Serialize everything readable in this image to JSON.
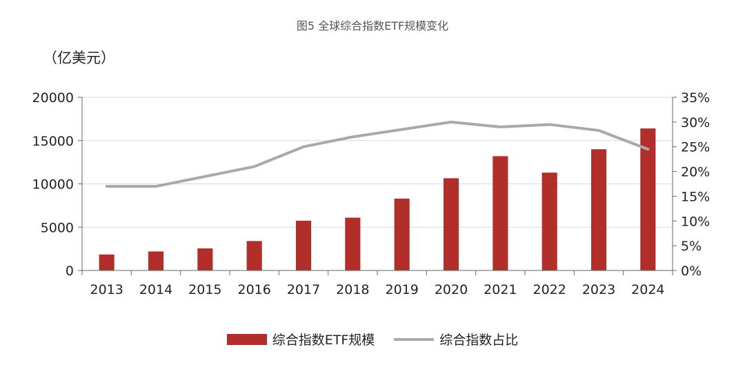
{
  "title": "图5 全球综合指数ETF规模变化",
  "unit_left": "（亿美元）",
  "colors": {
    "bar": "#B22E2B",
    "line": "#A9A9A9",
    "grid": "#D9D9D9",
    "axis": "#666666"
  },
  "chart_data": {
    "type": "bar+line",
    "categories": [
      "2013",
      "2014",
      "2015",
      "2016",
      "2017",
      "2018",
      "2019",
      "2020",
      "2021",
      "2022",
      "2023",
      "2024"
    ],
    "series": [
      {
        "name": "综合指数ETF规模",
        "type": "bar",
        "axis": "left",
        "values": [
          1850,
          2200,
          2550,
          3400,
          5750,
          6100,
          8300,
          10650,
          13200,
          11300,
          14000,
          16400
        ]
      },
      {
        "name": "综合指数占比",
        "type": "line",
        "axis": "right",
        "values": [
          17.0,
          17.0,
          19.0,
          21.0,
          25.0,
          27.0,
          28.5,
          30.0,
          29.0,
          29.5,
          28.3,
          24.5
        ]
      }
    ],
    "y_left": {
      "min": 0,
      "max": 20000,
      "ticks": [
        "0",
        "5000",
        "10000",
        "15000",
        "20000"
      ]
    },
    "y_right": {
      "min": 0,
      "max": 35,
      "ticks": [
        "0%",
        "5%",
        "10%",
        "15%",
        "20%",
        "25%",
        "30%",
        "35%"
      ]
    },
    "grid": true,
    "legend_position": "bottom"
  }
}
